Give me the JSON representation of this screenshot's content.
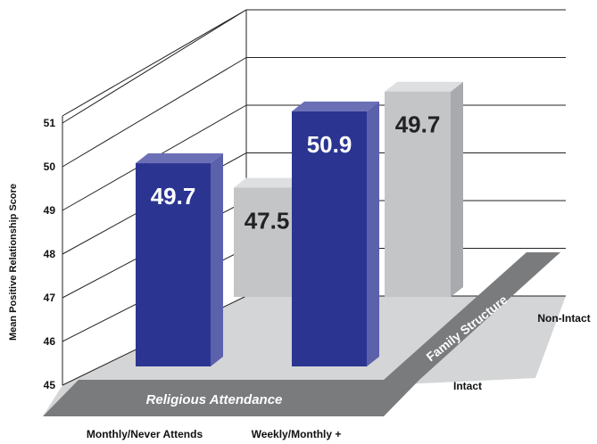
{
  "chart_data": {
    "type": "bar",
    "title": "",
    "ylabel": "Mean Positive Relationship Score",
    "xlabel": "Religious Attendance",
    "depth_label": "Family Structure",
    "ylim": [
      45,
      51
    ],
    "yticks": [
      "45",
      "46",
      "47",
      "48",
      "49",
      "50",
      "51"
    ],
    "categories": [
      "Monthly/Never Attends",
      "Weekly/Monthly +"
    ],
    "series": [
      {
        "name": "Intact",
        "values": [
          49.7,
          50.9
        ],
        "value_labels": [
          "49.7",
          "50.9"
        ],
        "color": "#2b3591"
      },
      {
        "name": "Non-Intact",
        "values": [
          47.5,
          49.7
        ],
        "value_labels": [
          "47.5",
          "49.7"
        ],
        "color": "#c4c5c7"
      }
    ],
    "grid": true
  }
}
